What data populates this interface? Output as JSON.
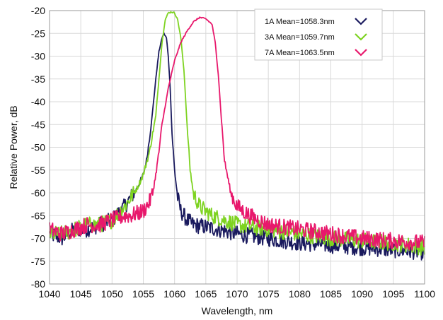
{
  "chart_data": {
    "type": "line",
    "title": "",
    "xlabel": "Wavelength, nm",
    "ylabel": "Relative Power, dB",
    "xlim": [
      1040,
      1100
    ],
    "ylim": [
      -80,
      -20
    ],
    "xticks": [
      "1040",
      "1045",
      "1050",
      "1055",
      "1060",
      "1065",
      "1070",
      "1075",
      "1080",
      "1085",
      "1090",
      "1095",
      "1100"
    ],
    "yticks": [
      "-20",
      "-25",
      "-30",
      "-35",
      "-40",
      "-45",
      "-50",
      "-55",
      "-60",
      "-65",
      "-70",
      "-75",
      "-80"
    ],
    "grid": true,
    "legend_position": "top-right",
    "series": [
      {
        "name": "1A Mean=1058.3nm",
        "color": "#1a1a5e",
        "x": [
          1040,
          1042,
          1044,
          1046,
          1048,
          1050,
          1052,
          1053,
          1054,
          1055,
          1055.5,
          1056,
          1056.5,
          1057,
          1057.5,
          1058,
          1058.3,
          1058.7,
          1059,
          1059.3,
          1059.6,
          1060,
          1060.5,
          1061,
          1062,
          1063,
          1065,
          1067,
          1070,
          1075,
          1080,
          1085,
          1090,
          1095,
          1100
        ],
        "y": [
          -69,
          -70,
          -68,
          -68,
          -67,
          -66,
          -63,
          -61,
          -59,
          -56,
          -53,
          -48,
          -42,
          -35,
          -29,
          -26,
          -25,
          -26,
          -30,
          -37,
          -47,
          -55,
          -61,
          -64,
          -66,
          -67,
          -67.5,
          -68,
          -69,
          -70,
          -71,
          -71.5,
          -72,
          -72.5,
          -73
        ]
      },
      {
        "name": "3A Mean=1059.7nm",
        "color": "#7ed321",
        "x": [
          1040,
          1042,
          1044,
          1046,
          1048,
          1050,
          1052,
          1053,
          1054,
          1055,
          1056,
          1057,
          1057.5,
          1058,
          1058.5,
          1059,
          1059.5,
          1060,
          1060.5,
          1061,
          1061.5,
          1062,
          1062.5,
          1063,
          1064,
          1065,
          1066,
          1068,
          1070,
          1075,
          1080,
          1085,
          1090,
          1095,
          1100
        ],
        "y": [
          -69,
          -69,
          -68,
          -67,
          -67,
          -66,
          -63,
          -61,
          -59,
          -56,
          -51,
          -43,
          -35,
          -27,
          -22,
          -20.5,
          -20.3,
          -20.5,
          -22,
          -26,
          -33,
          -45,
          -55,
          -60,
          -63,
          -64,
          -65,
          -66,
          -67,
          -68,
          -69,
          -70,
          -70.5,
          -71,
          -72
        ]
      },
      {
        "name": "7A Mean=1063.5nm",
        "color": "#e8186c",
        "x": [
          1040,
          1042,
          1044,
          1046,
          1048,
          1050,
          1052,
          1053,
          1054,
          1055,
          1056,
          1056.5,
          1057,
          1057.5,
          1058,
          1059,
          1060,
          1061,
          1062,
          1063,
          1064,
          1065,
          1066,
          1066.5,
          1067,
          1067.5,
          1068,
          1069,
          1070,
          1072,
          1075,
          1080,
          1085,
          1090,
          1095,
          1100
        ],
        "y": [
          -68,
          -69,
          -68,
          -67,
          -67,
          -66,
          -65,
          -65,
          -64.5,
          -64,
          -62,
          -60,
          -56,
          -51,
          -45,
          -37,
          -31,
          -27,
          -24.5,
          -22.5,
          -21.5,
          -21.8,
          -23,
          -27,
          -34,
          -44,
          -53,
          -60,
          -63,
          -65,
          -67,
          -68,
          -69,
          -70,
          -70.5,
          -71
        ]
      }
    ]
  }
}
